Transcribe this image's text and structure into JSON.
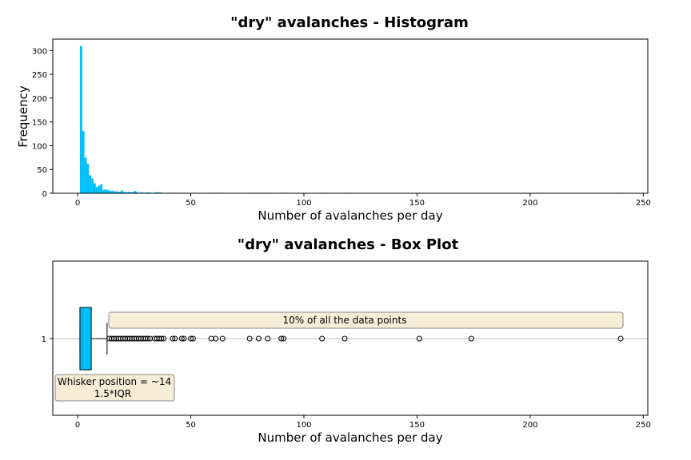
{
  "colors": {
    "bar": "#00bfff",
    "box": "#00bfff",
    "annotation_fill": "#f7ecd6",
    "annotation_edge": "#888888",
    "gridline": "#bbbbbb"
  },
  "chart_data": [
    {
      "type": "bar",
      "title": "\"dry\" avalanches - Histogram",
      "xlabel": "Number of avalanches per day",
      "ylabel": "Frequency",
      "xlim": [
        -11,
        252
      ],
      "ylim": [
        0,
        324
      ],
      "xticks": [
        0,
        50,
        100,
        150,
        200,
        250
      ],
      "yticks": [
        0,
        50,
        100,
        150,
        200,
        250,
        300
      ],
      "bin_width": 1,
      "bins": [
        [
          1,
          310
        ],
        [
          2,
          131
        ],
        [
          3,
          75
        ],
        [
          4,
          62
        ],
        [
          5,
          38
        ],
        [
          6,
          31
        ],
        [
          7,
          21
        ],
        [
          8,
          13
        ],
        [
          9,
          16
        ],
        [
          10,
          19
        ],
        [
          11,
          7
        ],
        [
          12,
          8
        ],
        [
          13,
          7
        ],
        [
          14,
          5
        ],
        [
          15,
          5
        ],
        [
          16,
          4
        ],
        [
          17,
          4
        ],
        [
          18,
          3
        ],
        [
          19,
          6
        ],
        [
          20,
          3
        ],
        [
          21,
          2
        ],
        [
          22,
          3
        ],
        [
          23,
          2
        ],
        [
          24,
          3
        ],
        [
          25,
          5
        ],
        [
          26,
          2
        ],
        [
          27,
          1
        ],
        [
          28,
          2
        ],
        [
          29,
          1
        ],
        [
          30,
          2
        ],
        [
          31,
          2
        ],
        [
          32,
          1
        ],
        [
          34,
          2
        ],
        [
          35,
          2
        ],
        [
          36,
          2
        ],
        [
          37,
          1
        ],
        [
          38,
          1
        ],
        [
          42,
          1
        ],
        [
          43,
          1
        ],
        [
          46,
          1
        ],
        [
          47,
          1
        ],
        [
          50,
          1
        ],
        [
          51,
          1
        ],
        [
          59,
          1
        ],
        [
          61,
          1
        ],
        [
          64,
          1
        ],
        [
          76,
          1
        ],
        [
          80,
          1
        ],
        [
          84,
          1
        ],
        [
          90,
          1
        ],
        [
          91,
          1
        ],
        [
          108,
          1
        ],
        [
          118,
          1
        ],
        [
          151,
          1
        ],
        [
          174,
          1
        ],
        [
          240,
          1
        ]
      ]
    },
    {
      "type": "box",
      "title": "\"dry\" avalanches - Box Plot",
      "xlabel": "Number of avalanches per day",
      "xlim": [
        -11,
        252
      ],
      "xticks": [
        0,
        50,
        100,
        150,
        200,
        250
      ],
      "yticks": [
        "1"
      ],
      "q1": 1,
      "median": 2,
      "q3": 6,
      "whisker_low": 1,
      "whisker_high": 13,
      "outliers": [
        14,
        15,
        16,
        17,
        18,
        19,
        20,
        21,
        22,
        23,
        24,
        25,
        26,
        27,
        28,
        29,
        30,
        31,
        32,
        34,
        35,
        36,
        37,
        38,
        42,
        43,
        46,
        47,
        50,
        51,
        59,
        61,
        64,
        76,
        80,
        84,
        90,
        91,
        108,
        118,
        151,
        174,
        240
      ],
      "annotations": [
        {
          "text": "10% of all the data points"
        },
        {
          "text_line1": "Whisker position = ~14",
          "text_line2": "1.5*IQR"
        }
      ]
    }
  ]
}
